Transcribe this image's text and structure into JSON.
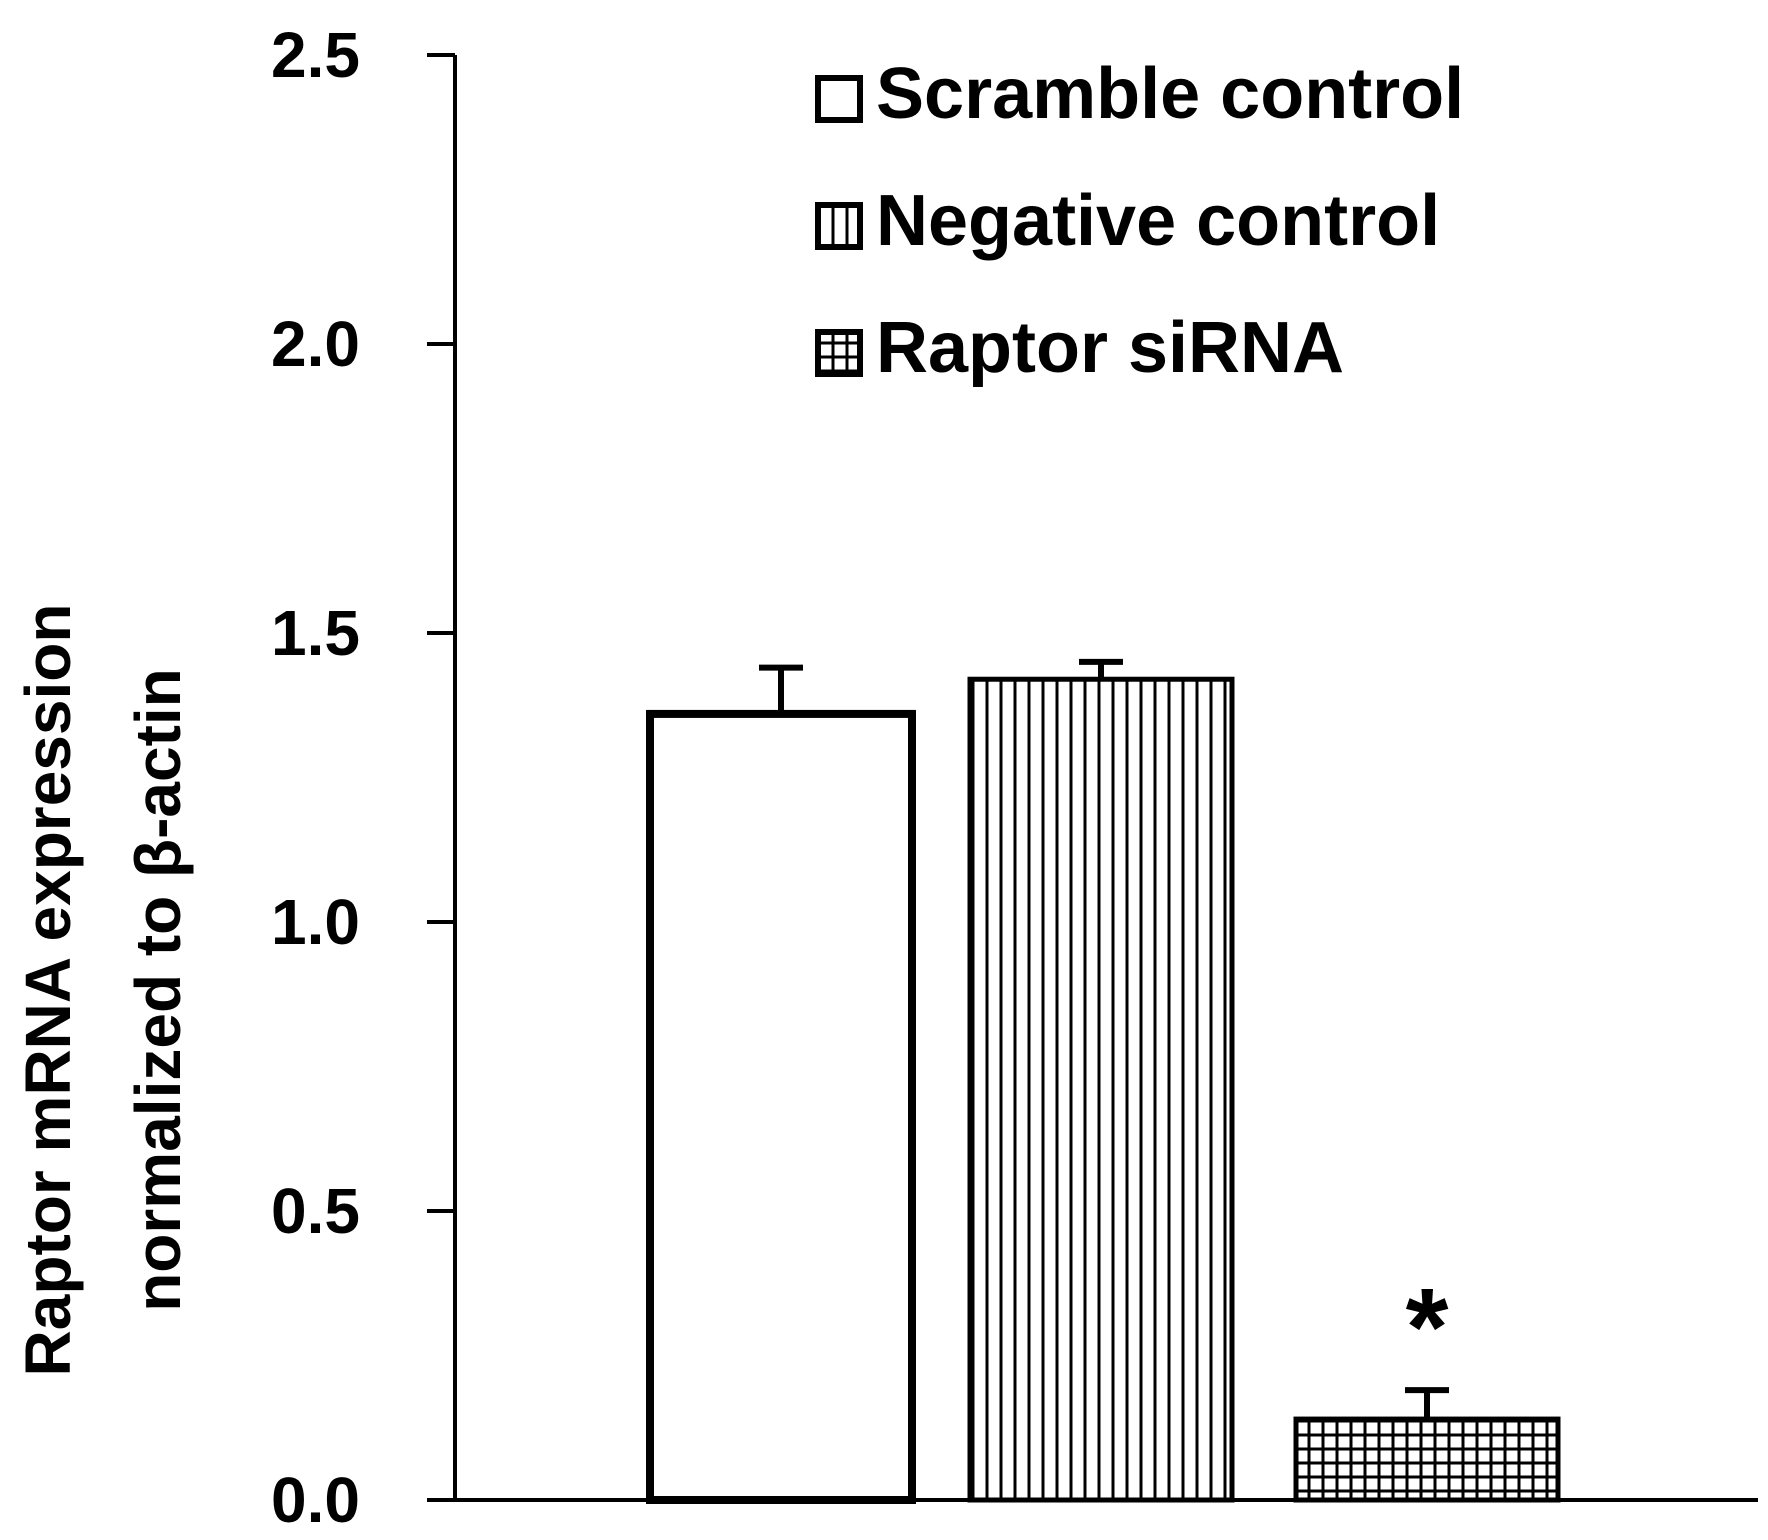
{
  "chart_data": {
    "type": "bar",
    "categories": [
      "Scramble control",
      "Negative control",
      "Raptor siRNA"
    ],
    "values": [
      1.36,
      1.42,
      0.14
    ],
    "errors": [
      0.08,
      0.03,
      0.05
    ],
    "fills": [
      "white",
      "vertical-lines",
      "grid"
    ],
    "annotations": [
      {
        "category": "Raptor siRNA",
        "text": "*"
      }
    ],
    "legend": {
      "placement": "top-right",
      "entries": [
        "Scramble control",
        "Negative control",
        "Raptor siRNA"
      ]
    },
    "ylabel_line1": "Raptor mRNA expression",
    "ylabel_line2": "normalized to β-actin",
    "xlabel": "",
    "ylim": [
      0,
      2.5
    ],
    "yticks": [
      "0.0",
      "0.5",
      "1.0",
      "1.5",
      "2.0",
      "2.5"
    ],
    "ytick_values": [
      0,
      0.5,
      1.0,
      1.5,
      2.0,
      2.5
    ],
    "grid": false,
    "colors": {
      "bar_stroke": "#000000",
      "bar_fill": "#ffffff",
      "axis": "#000000"
    }
  }
}
